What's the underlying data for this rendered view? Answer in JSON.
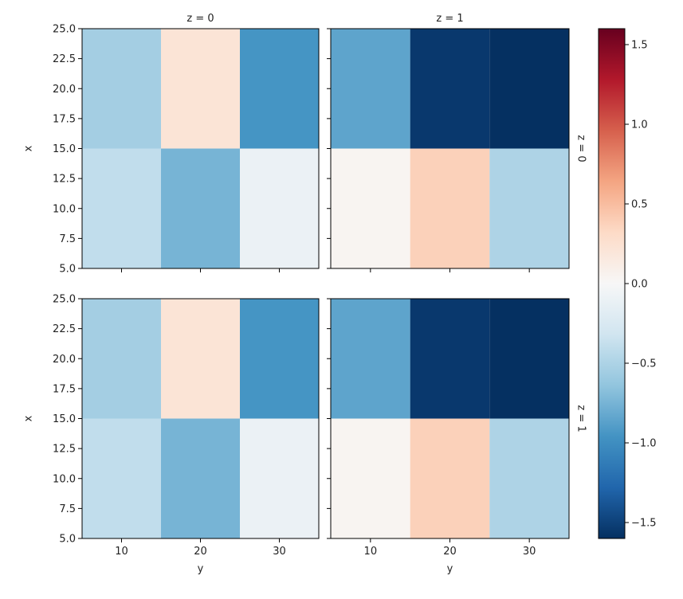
{
  "chart_data": {
    "type": "heatmap",
    "facet_col_labels": [
      "z = 0",
      "z = 1"
    ],
    "facet_row_labels": [
      "z = 0",
      "z = 1"
    ],
    "x_axis": {
      "label": "y",
      "lim": [
        5,
        35
      ],
      "ticks": [
        10,
        20,
        30
      ],
      "tick_labels": [
        "10",
        "20",
        "30"
      ]
    },
    "y_axis": {
      "label": "x",
      "lim": [
        5,
        25
      ],
      "ticks": [
        5,
        7.5,
        10,
        12.5,
        15,
        17.5,
        20,
        22.5,
        25
      ],
      "tick_labels": [
        "5.0",
        "7.5",
        "10.0",
        "12.5",
        "15.0",
        "17.5",
        "20.0",
        "22.5",
        "25.0"
      ]
    },
    "cell_x_centers": [
      10,
      20,
      30
    ],
    "cell_y_centers": [
      10,
      20
    ],
    "panels": [
      {
        "row": 0,
        "col": 0,
        "values": [
          [
            -0.4,
            -0.75,
            -0.1
          ],
          [
            -0.55,
            0.22,
            -0.95
          ]
        ]
      },
      {
        "row": 0,
        "col": 1,
        "values": [
          [
            0.04,
            0.38,
            -0.5
          ],
          [
            -0.85,
            -1.55,
            -1.6
          ]
        ]
      },
      {
        "row": 1,
        "col": 0,
        "values": [
          [
            -0.4,
            -0.75,
            -0.1
          ],
          [
            -0.55,
            0.22,
            -0.95
          ]
        ]
      },
      {
        "row": 1,
        "col": 1,
        "values": [
          [
            0.04,
            0.38,
            -0.5
          ],
          [
            -0.85,
            -1.55,
            -1.6
          ]
        ]
      }
    ],
    "colorbar": {
      "cmap": "RdBu_r",
      "vmin": -1.6,
      "vmax": 1.6,
      "ticks": [
        -1.5,
        -1.0,
        -0.5,
        0.0,
        0.5,
        1.0,
        1.5
      ],
      "tick_labels": [
        "−1.5",
        "−1.0",
        "−0.5",
        "0.0",
        "0.5",
        "1.0",
        "1.5"
      ]
    }
  }
}
